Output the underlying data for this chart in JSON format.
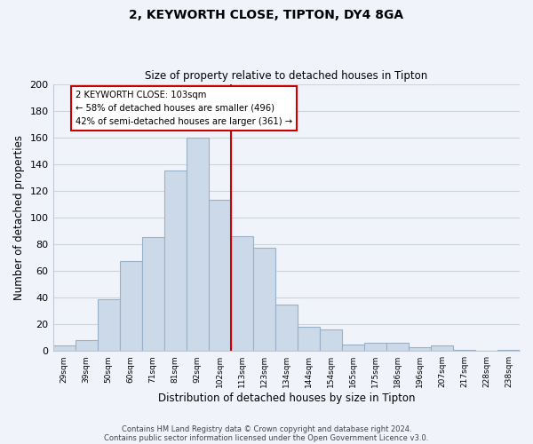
{
  "title": "2, KEYWORTH CLOSE, TIPTON, DY4 8GA",
  "subtitle": "Size of property relative to detached houses in Tipton",
  "xlabel": "Distribution of detached houses by size in Tipton",
  "ylabel": "Number of detached properties",
  "bar_labels": [
    "29sqm",
    "39sqm",
    "50sqm",
    "60sqm",
    "71sqm",
    "81sqm",
    "92sqm",
    "102sqm",
    "113sqm",
    "123sqm",
    "134sqm",
    "144sqm",
    "154sqm",
    "165sqm",
    "175sqm",
    "186sqm",
    "196sqm",
    "207sqm",
    "217sqm",
    "228sqm",
    "238sqm"
  ],
  "bar_values": [
    4,
    8,
    39,
    67,
    85,
    135,
    160,
    113,
    86,
    77,
    35,
    18,
    16,
    5,
    6,
    6,
    3,
    4,
    1,
    0,
    1
  ],
  "bar_color": "#ccd9e8",
  "bar_edge_color": "#9ab0c8",
  "vline_color": "#cc0000",
  "vline_index": 7,
  "annotation_text": "2 KEYWORTH CLOSE: 103sqm\n← 58% of detached houses are smaller (496)\n42% of semi-detached houses are larger (361) →",
  "annotation_box_color": "white",
  "annotation_box_edge": "#cc0000",
  "ylim": [
    0,
    200
  ],
  "yticks": [
    0,
    20,
    40,
    60,
    80,
    100,
    120,
    140,
    160,
    180,
    200
  ],
  "footer_line1": "Contains HM Land Registry data © Crown copyright and database right 2024.",
  "footer_line2": "Contains public sector information licensed under the Open Government Licence v3.0.",
  "bg_color": "#f0f4fa",
  "grid_color": "#c8d4e4"
}
